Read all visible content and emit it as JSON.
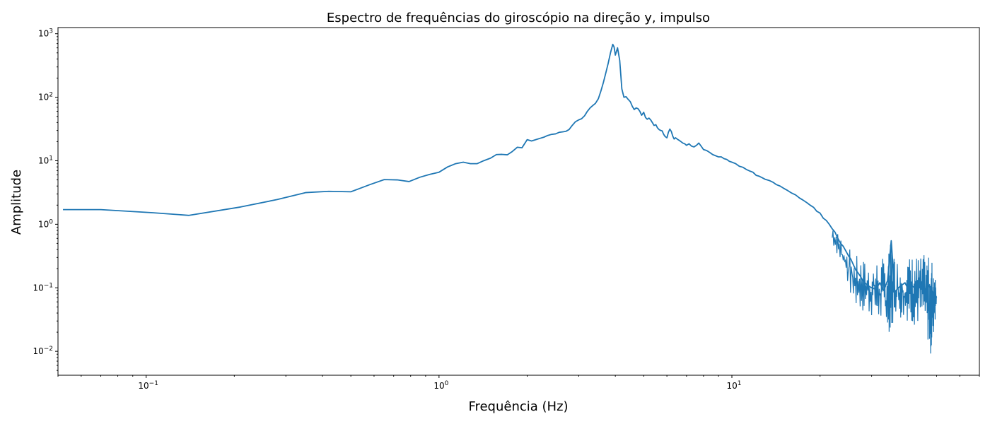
{
  "chart_data": {
    "type": "line",
    "title": "Espectro de frequências do giroscópio na direção y, impulso",
    "xlabel": "Frequência (Hz)",
    "ylabel": "Amplitude",
    "xscale": "log",
    "yscale": "log",
    "xlim": [
      0.05,
      70
    ],
    "ylim": [
      0.0042,
      1250
    ],
    "grid": false,
    "legend": "none",
    "x_major_ticks": [
      {
        "value": 0.1,
        "base": "10",
        "exp": "−1"
      },
      {
        "value": 1,
        "base": "10",
        "exp": "0"
      },
      {
        "value": 10,
        "base": "10",
        "exp": "1"
      }
    ],
    "y_major_ticks": [
      {
        "value": 0.01,
        "base": "10",
        "exp": "−2"
      },
      {
        "value": 0.1,
        "base": "10",
        "exp": "−1"
      },
      {
        "value": 1,
        "base": "10",
        "exp": "0"
      },
      {
        "value": 10,
        "base": "10",
        "exp": "1"
      },
      {
        "value": 100,
        "base": "10",
        "exp": "2"
      },
      {
        "value": 1000,
        "base": "10",
        "exp": "3"
      }
    ],
    "series": [
      {
        "color": "#1f77b4",
        "points": [
          [
            0.052,
            1.7
          ],
          [
            0.07,
            1.7
          ],
          [
            0.105,
            1.52
          ],
          [
            0.14,
            1.38
          ],
          [
            0.21,
            1.87
          ],
          [
            0.28,
            2.45
          ],
          [
            0.35,
            3.15
          ],
          [
            0.42,
            3.3
          ],
          [
            0.5,
            3.25
          ],
          [
            0.58,
            4.2
          ],
          [
            0.65,
            5.05
          ],
          [
            0.72,
            5.0
          ],
          [
            0.79,
            4.7
          ],
          [
            0.86,
            5.5
          ],
          [
            0.93,
            6.1
          ],
          [
            1.0,
            6.6
          ],
          [
            1.07,
            8.0
          ],
          [
            1.14,
            9.0
          ],
          [
            1.21,
            9.5
          ],
          [
            1.28,
            9.0
          ],
          [
            1.35,
            9.0
          ],
          [
            1.42,
            10.0
          ],
          [
            1.5,
            11.0
          ],
          [
            1.57,
            12.5
          ],
          [
            1.64,
            12.6
          ],
          [
            1.71,
            12.4
          ],
          [
            1.78,
            14.0
          ],
          [
            1.85,
            16.3
          ],
          [
            1.92,
            16.0
          ],
          [
            2.0,
            21.5
          ],
          [
            2.07,
            20.5
          ],
          [
            2.14,
            21.5
          ],
          [
            2.21,
            22.5
          ],
          [
            2.28,
            23.5
          ],
          [
            2.35,
            25.0
          ],
          [
            2.42,
            26.0
          ],
          [
            2.5,
            26.5
          ],
          [
            2.57,
            28.0
          ],
          [
            2.64,
            28.5
          ],
          [
            2.71,
            29.0
          ],
          [
            2.78,
            31.0
          ],
          [
            2.85,
            36.0
          ],
          [
            2.92,
            41.0
          ],
          [
            3.0,
            44.0
          ],
          [
            3.07,
            46.0
          ],
          [
            3.14,
            51.0
          ],
          [
            3.21,
            60.0
          ],
          [
            3.28,
            68.0
          ],
          [
            3.35,
            74.0
          ],
          [
            3.42,
            80.0
          ],
          [
            3.5,
            95.0
          ],
          [
            3.57,
            125.0
          ],
          [
            3.64,
            170.0
          ],
          [
            3.71,
            240.0
          ],
          [
            3.78,
            340.0
          ],
          [
            3.85,
            500.0
          ],
          [
            3.92,
            680.0
          ],
          [
            3.96,
            620.0
          ],
          [
            4.0,
            460.0
          ],
          [
            4.07,
            600.0
          ],
          [
            4.14,
            380.0
          ],
          [
            4.21,
            135.0
          ],
          [
            4.28,
            100.0
          ],
          [
            4.35,
            102.0
          ],
          [
            4.42,
            93.0
          ],
          [
            4.5,
            85.0
          ],
          [
            4.57,
            72.0
          ],
          [
            4.64,
            64.0
          ],
          [
            4.71,
            68.0
          ],
          [
            4.78,
            66.0
          ],
          [
            4.85,
            60.0
          ],
          [
            4.92,
            52.0
          ],
          [
            5.0,
            58.0
          ],
          [
            5.07,
            48.0
          ],
          [
            5.14,
            45.0
          ],
          [
            5.21,
            47.0
          ],
          [
            5.28,
            44.0
          ],
          [
            5.35,
            40.0
          ],
          [
            5.42,
            36.0
          ],
          [
            5.5,
            37.0
          ],
          [
            5.57,
            33.0
          ],
          [
            5.64,
            31.0
          ],
          [
            5.71,
            30.0
          ],
          [
            5.78,
            29.5
          ],
          [
            5.85,
            26.0
          ],
          [
            5.92,
            24.0
          ],
          [
            6.0,
            23.0
          ],
          [
            6.07,
            28.0
          ],
          [
            6.14,
            31.5
          ],
          [
            6.21,
            29.0
          ],
          [
            6.28,
            24.5
          ],
          [
            6.35,
            22.0
          ],
          [
            6.42,
            23.0
          ],
          [
            6.5,
            22.0
          ],
          [
            6.6,
            21.0
          ],
          [
            6.7,
            20.0
          ],
          [
            6.8,
            19.0
          ],
          [
            6.9,
            18.5
          ],
          [
            7.0,
            17.5
          ],
          [
            7.14,
            18.5
          ],
          [
            7.28,
            17.0
          ],
          [
            7.42,
            16.5
          ],
          [
            7.57,
            17.5
          ],
          [
            7.71,
            19.0
          ],
          [
            7.85,
            17.0
          ],
          [
            8.0,
            15.0
          ],
          [
            8.2,
            14.5
          ],
          [
            8.4,
            13.5
          ],
          [
            8.6,
            12.5
          ],
          [
            8.8,
            12.0
          ],
          [
            9.0,
            11.5
          ],
          [
            9.2,
            11.5
          ],
          [
            9.4,
            10.8
          ],
          [
            9.6,
            10.5
          ],
          [
            9.8,
            9.8
          ],
          [
            10.0,
            9.5
          ],
          [
            10.3,
            9.0
          ],
          [
            10.6,
            8.2
          ],
          [
            10.9,
            7.9
          ],
          [
            11.2,
            7.3
          ],
          [
            11.5,
            6.9
          ],
          [
            11.8,
            6.6
          ],
          [
            12.1,
            5.9
          ],
          [
            12.4,
            5.7
          ],
          [
            12.7,
            5.4
          ],
          [
            13.0,
            5.1
          ],
          [
            13.4,
            4.9
          ],
          [
            13.8,
            4.6
          ],
          [
            14.2,
            4.2
          ],
          [
            14.6,
            4.0
          ],
          [
            15.0,
            3.7
          ],
          [
            15.5,
            3.4
          ],
          [
            16.0,
            3.1
          ],
          [
            16.5,
            2.9
          ],
          [
            17.0,
            2.6
          ],
          [
            17.5,
            2.4
          ],
          [
            18.0,
            2.2
          ],
          [
            18.5,
            2.0
          ],
          [
            19.0,
            1.85
          ],
          [
            19.5,
            1.6
          ],
          [
            20.0,
            1.5
          ],
          [
            20.5,
            1.25
          ],
          [
            21.0,
            1.15
          ],
          [
            21.5,
            1.0
          ],
          [
            22.0,
            0.85
          ],
          [
            22.5,
            0.75
          ],
          [
            23.0,
            0.6
          ],
          [
            23.5,
            0.5
          ],
          [
            24.0,
            0.45
          ],
          [
            24.5,
            0.38
          ],
          [
            25.0,
            0.32
          ],
          [
            25.5,
            0.28
          ],
          [
            26.0,
            0.23
          ],
          [
            26.5,
            0.19
          ],
          [
            27.0,
            0.17
          ],
          [
            27.5,
            0.15
          ],
          [
            28.0,
            0.13
          ],
          [
            29.0,
            0.11
          ],
          [
            30.0,
            0.1
          ],
          [
            31.0,
            0.095
          ],
          [
            32.0,
            0.12
          ],
          [
            33.0,
            0.09
          ],
          [
            34.0,
            0.13
          ],
          [
            35.0,
            0.55
          ],
          [
            36.0,
            0.085
          ],
          [
            37.0,
            0.1
          ],
          [
            38.0,
            0.11
          ],
          [
            39.0,
            0.12
          ],
          [
            40.0,
            0.095
          ],
          [
            41.0,
            0.11
          ],
          [
            42.0,
            0.1
          ],
          [
            43.0,
            0.09
          ],
          [
            44.0,
            0.12
          ],
          [
            45.0,
            0.1
          ],
          [
            46.0,
            0.095
          ],
          [
            47.0,
            0.11
          ],
          [
            48.0,
            0.09
          ],
          [
            49.0,
            0.085
          ],
          [
            50.0,
            0.07
          ]
        ],
        "noise_band": [
          [
            22.0,
            0.5,
            1.0
          ],
          [
            24.0,
            0.2,
            0.55
          ],
          [
            26.0,
            0.05,
            0.35
          ],
          [
            28.0,
            0.04,
            0.28
          ],
          [
            30.0,
            0.035,
            0.25
          ],
          [
            32.0,
            0.025,
            0.3
          ],
          [
            34.0,
            0.02,
            0.3
          ],
          [
            35.0,
            0.02,
            0.55
          ],
          [
            36.0,
            0.04,
            0.3
          ],
          [
            38.0,
            0.03,
            0.28
          ],
          [
            40.0,
            0.03,
            0.3
          ],
          [
            42.0,
            0.025,
            0.35
          ],
          [
            44.0,
            0.025,
            0.3
          ],
          [
            46.0,
            0.02,
            0.35
          ],
          [
            47.0,
            0.012,
            0.3
          ],
          [
            48.0,
            0.0075,
            0.3
          ],
          [
            49.0,
            0.02,
            0.3
          ],
          [
            50.0,
            0.05,
            0.1
          ]
        ]
      }
    ]
  }
}
